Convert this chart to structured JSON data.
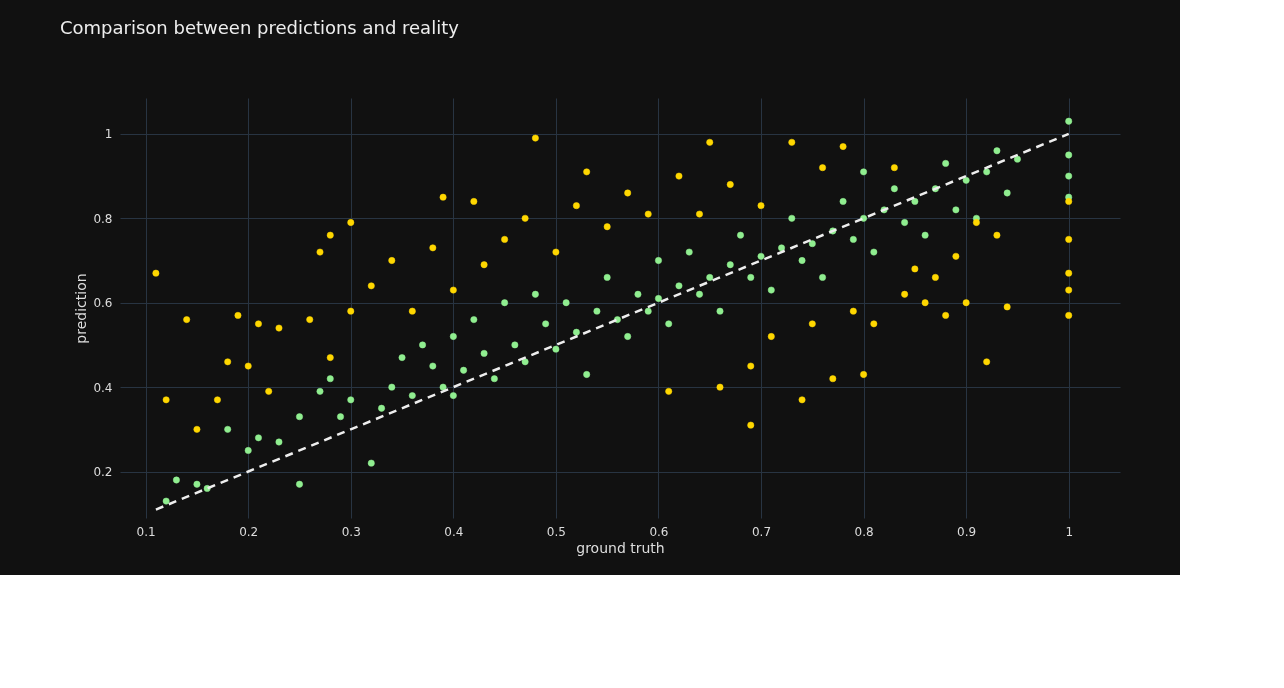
{
  "chart_data": {
    "type": "scatter",
    "title": "Comparison between predictions and reality",
    "xlabel": "ground truth",
    "ylabel": "prediction",
    "xlim": [
      0.075,
      1.05
    ],
    "ylim": [
      0.09,
      1.085
    ],
    "xticks": [
      0.1,
      0.2,
      0.3,
      0.4,
      0.5,
      0.6,
      0.7,
      0.8,
      0.9,
      1
    ],
    "yticks": [
      0.2,
      0.4,
      0.6,
      0.8,
      1
    ],
    "grid": true,
    "marker": "circle",
    "series": [
      {
        "type": "scatter",
        "color": "#90ee90",
        "x": [
          0.12,
          0.13,
          0.15,
          0.16,
          0.18,
          0.2,
          0.21,
          0.23,
          0.25,
          0.25,
          0.27,
          0.28,
          0.29,
          0.3,
          0.32,
          0.33,
          0.34,
          0.35,
          0.36,
          0.37,
          0.38,
          0.39,
          0.4,
          0.4,
          0.41,
          0.42,
          0.43,
          0.44,
          0.45,
          0.46,
          0.47,
          0.48,
          0.49,
          0.5,
          0.51,
          0.52,
          0.53,
          0.54,
          0.55,
          0.56,
          0.57,
          0.58,
          0.59,
          0.6,
          0.6,
          0.61,
          0.62,
          0.63,
          0.64,
          0.65,
          0.66,
          0.67,
          0.68,
          0.69,
          0.7,
          0.71,
          0.72,
          0.73,
          0.74,
          0.75,
          0.76,
          0.77,
          0.78,
          0.79,
          0.8,
          0.8,
          0.81,
          0.82,
          0.83,
          0.84,
          0.85,
          0.86,
          0.87,
          0.88,
          0.89,
          0.9,
          0.91,
          0.92,
          0.93,
          0.94,
          0.95,
          1,
          1,
          1,
          1
        ],
        "values": [
          0.13,
          0.18,
          0.17,
          0.16,
          0.3,
          0.25,
          0.28,
          0.27,
          0.17,
          0.33,
          0.39,
          0.42,
          0.33,
          0.37,
          0.22,
          0.35,
          0.4,
          0.47,
          0.38,
          0.5,
          0.45,
          0.4,
          0.52,
          0.38,
          0.44,
          0.56,
          0.48,
          0.42,
          0.6,
          0.5,
          0.46,
          0.62,
          0.55,
          0.49,
          0.6,
          0.53,
          0.43,
          0.58,
          0.66,
          0.56,
          0.52,
          0.62,
          0.58,
          0.7,
          0.61,
          0.55,
          0.64,
          0.72,
          0.62,
          0.66,
          0.58,
          0.69,
          0.76,
          0.66,
          0.71,
          0.63,
          0.73,
          0.8,
          0.7,
          0.74,
          0.66,
          0.77,
          0.84,
          0.75,
          0.8,
          0.91,
          0.72,
          0.82,
          0.87,
          0.79,
          0.84,
          0.76,
          0.87,
          0.93,
          0.82,
          0.89,
          0.8,
          0.91,
          0.96,
          0.86,
          0.94,
          1.03,
          0.95,
          0.9,
          0.85
        ]
      },
      {
        "type": "scatter",
        "color": "#ffd700",
        "x": [
          0.11,
          0.12,
          0.14,
          0.15,
          0.17,
          0.18,
          0.19,
          0.2,
          0.21,
          0.22,
          0.23,
          0.26,
          0.27,
          0.28,
          0.28,
          0.3,
          0.3,
          0.32,
          0.34,
          0.36,
          0.38,
          0.39,
          0.4,
          0.42,
          0.43,
          0.45,
          0.47,
          0.48,
          0.5,
          0.52,
          0.53,
          0.55,
          0.57,
          0.59,
          0.61,
          0.62,
          0.64,
          0.65,
          0.66,
          0.67,
          0.69,
          0.69,
          0.7,
          0.71,
          0.73,
          0.74,
          0.75,
          0.76,
          0.77,
          0.78,
          0.79,
          0.8,
          0.81,
          0.83,
          0.84,
          0.85,
          0.86,
          0.87,
          0.88,
          0.89,
          0.9,
          0.91,
          0.92,
          0.93,
          0.94,
          1,
          1,
          1,
          1,
          1
        ],
        "values": [
          0.67,
          0.37,
          0.56,
          0.3,
          0.37,
          0.46,
          0.57,
          0.45,
          0.55,
          0.39,
          0.54,
          0.56,
          0.72,
          0.76,
          0.47,
          0.79,
          0.58,
          0.64,
          0.7,
          0.58,
          0.73,
          0.85,
          0.63,
          0.84,
          0.69,
          0.75,
          0.8,
          0.99,
          0.72,
          0.83,
          0.91,
          0.78,
          0.86,
          0.81,
          0.39,
          0.9,
          0.81,
          0.98,
          0.4,
          0.88,
          0.31,
          0.45,
          0.83,
          0.52,
          0.98,
          0.37,
          0.55,
          0.92,
          0.42,
          0.97,
          0.58,
          0.43,
          0.55,
          0.92,
          0.62,
          0.68,
          0.6,
          0.66,
          0.57,
          0.71,
          0.6,
          0.79,
          0.46,
          0.76,
          0.59,
          0.84,
          0.75,
          0.67,
          0.63,
          0.57
        ]
      },
      {
        "type": "line",
        "color": "#eeeeee",
        "line_style": "dashed",
        "marker": "none",
        "x": [
          0.11,
          1
        ],
        "values": [
          0.11,
          1
        ]
      }
    ]
  }
}
